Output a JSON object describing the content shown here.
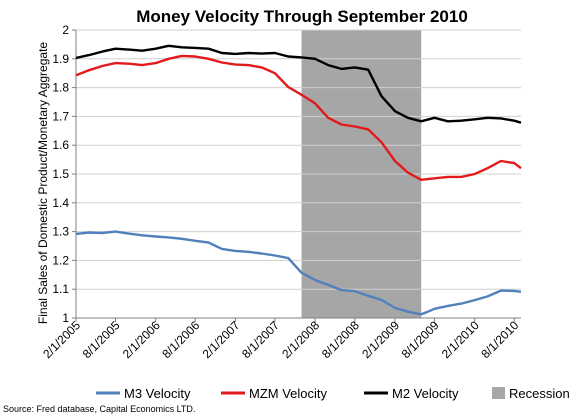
{
  "chart_data": {
    "type": "line",
    "title": "Money Velocity Through September 2010",
    "ylabel": "Final Sales of Domestic Product/Monetary Aggregate",
    "xlabel": "",
    "ylim": [
      1,
      2
    ],
    "y_ticks": [
      "1",
      "1.1",
      "1.2",
      "1.3",
      "1.4",
      "1.5",
      "1.6",
      "1.7",
      "1.8",
      "1.9",
      "2"
    ],
    "x_tick_labels": [
      "2/1/2005",
      "8/1/2005",
      "2/1/2006",
      "8/1/2006",
      "2/1/2007",
      "8/1/2007",
      "2/1/2008",
      "8/1/2008",
      "2/1/2009",
      "8/1/2009",
      "2/1/2010",
      "8/1/2010"
    ],
    "x_range": [
      "2005-02-01",
      "2010-09-01"
    ],
    "grid": "horizontal",
    "legend_placement": "bottom",
    "recession": {
      "name": "Recession",
      "start": "2007-12-01",
      "end": "2009-06-01",
      "color": "#a6a6a6"
    },
    "series": [
      {
        "name": "M3 Velocity",
        "color": "#4f81bd",
        "points": [
          [
            "2005-02-01",
            1.292
          ],
          [
            "2005-04-01",
            1.297
          ],
          [
            "2005-06-01",
            1.295
          ],
          [
            "2005-08-01",
            1.3
          ],
          [
            "2005-10-01",
            1.293
          ],
          [
            "2005-12-01",
            1.287
          ],
          [
            "2006-02-01",
            1.283
          ],
          [
            "2006-04-01",
            1.28
          ],
          [
            "2006-06-01",
            1.275
          ],
          [
            "2006-08-01",
            1.268
          ],
          [
            "2006-10-01",
            1.262
          ],
          [
            "2006-12-01",
            1.24
          ],
          [
            "2007-02-01",
            1.233
          ],
          [
            "2007-04-01",
            1.23
          ],
          [
            "2007-06-01",
            1.224
          ],
          [
            "2007-08-01",
            1.217
          ],
          [
            "2007-10-01",
            1.208
          ],
          [
            "2007-12-01",
            1.157
          ],
          [
            "2008-02-01",
            1.132
          ],
          [
            "2008-04-01",
            1.115
          ],
          [
            "2008-06-01",
            1.097
          ],
          [
            "2008-08-01",
            1.093
          ],
          [
            "2008-10-01",
            1.077
          ],
          [
            "2008-12-01",
            1.063
          ],
          [
            "2009-02-01",
            1.035
          ],
          [
            "2009-04-01",
            1.022
          ],
          [
            "2009-06-01",
            1.013
          ],
          [
            "2009-07-01",
            1.022
          ],
          [
            "2009-08-01",
            1.032
          ],
          [
            "2009-10-01",
            1.042
          ],
          [
            "2009-12-01",
            1.05
          ],
          [
            "2010-02-01",
            1.062
          ],
          [
            "2010-04-01",
            1.075
          ],
          [
            "2010-06-01",
            1.095
          ],
          [
            "2010-08-01",
            1.094
          ],
          [
            "2010-09-01",
            1.091
          ]
        ]
      },
      {
        "name": "MZM Velocity",
        "color": "#e31a1c",
        "points": [
          [
            "2005-02-01",
            1.843
          ],
          [
            "2005-04-01",
            1.86
          ],
          [
            "2005-06-01",
            1.875
          ],
          [
            "2005-08-01",
            1.885
          ],
          [
            "2005-10-01",
            1.883
          ],
          [
            "2005-12-01",
            1.878
          ],
          [
            "2006-02-01",
            1.885
          ],
          [
            "2006-04-01",
            1.9
          ],
          [
            "2006-06-01",
            1.91
          ],
          [
            "2006-08-01",
            1.908
          ],
          [
            "2006-10-01",
            1.9
          ],
          [
            "2006-12-01",
            1.887
          ],
          [
            "2007-02-01",
            1.88
          ],
          [
            "2007-04-01",
            1.878
          ],
          [
            "2007-06-01",
            1.87
          ],
          [
            "2007-08-01",
            1.85
          ],
          [
            "2007-10-01",
            1.802
          ],
          [
            "2007-12-01",
            1.775
          ],
          [
            "2008-02-01",
            1.745
          ],
          [
            "2008-04-01",
            1.695
          ],
          [
            "2008-06-01",
            1.672
          ],
          [
            "2008-08-01",
            1.665
          ],
          [
            "2008-10-01",
            1.655
          ],
          [
            "2008-12-01",
            1.61
          ],
          [
            "2009-02-01",
            1.545
          ],
          [
            "2009-04-01",
            1.505
          ],
          [
            "2009-06-01",
            1.48
          ],
          [
            "2009-08-01",
            1.485
          ],
          [
            "2009-10-01",
            1.49
          ],
          [
            "2009-12-01",
            1.49
          ],
          [
            "2010-02-01",
            1.5
          ],
          [
            "2010-04-01",
            1.52
          ],
          [
            "2010-06-01",
            1.545
          ],
          [
            "2010-08-01",
            1.538
          ],
          [
            "2010-09-01",
            1.52
          ]
        ]
      },
      {
        "name": "M2 Velocity",
        "color": "#000000",
        "points": [
          [
            "2005-02-01",
            1.903
          ],
          [
            "2005-04-01",
            1.913
          ],
          [
            "2005-06-01",
            1.925
          ],
          [
            "2005-08-01",
            1.935
          ],
          [
            "2005-10-01",
            1.932
          ],
          [
            "2005-12-01",
            1.928
          ],
          [
            "2006-02-01",
            1.935
          ],
          [
            "2006-04-01",
            1.945
          ],
          [
            "2006-06-01",
            1.94
          ],
          [
            "2006-08-01",
            1.938
          ],
          [
            "2006-10-01",
            1.935
          ],
          [
            "2006-12-01",
            1.92
          ],
          [
            "2007-02-01",
            1.917
          ],
          [
            "2007-04-01",
            1.92
          ],
          [
            "2007-06-01",
            1.918
          ],
          [
            "2007-08-01",
            1.92
          ],
          [
            "2007-10-01",
            1.908
          ],
          [
            "2007-12-01",
            1.905
          ],
          [
            "2008-02-01",
            1.9
          ],
          [
            "2008-04-01",
            1.878
          ],
          [
            "2008-06-01",
            1.865
          ],
          [
            "2008-08-01",
            1.87
          ],
          [
            "2008-10-01",
            1.862
          ],
          [
            "2008-12-01",
            1.77
          ],
          [
            "2009-02-01",
            1.718
          ],
          [
            "2009-04-01",
            1.695
          ],
          [
            "2009-06-01",
            1.683
          ],
          [
            "2009-08-01",
            1.695
          ],
          [
            "2009-10-01",
            1.683
          ],
          [
            "2009-12-01",
            1.685
          ],
          [
            "2010-02-01",
            1.69
          ],
          [
            "2010-04-01",
            1.695
          ],
          [
            "2010-06-01",
            1.693
          ],
          [
            "2010-08-01",
            1.685
          ],
          [
            "2010-09-01",
            1.678
          ]
        ]
      }
    ]
  },
  "source": "Source: Fred database, Capital Economics LTD."
}
